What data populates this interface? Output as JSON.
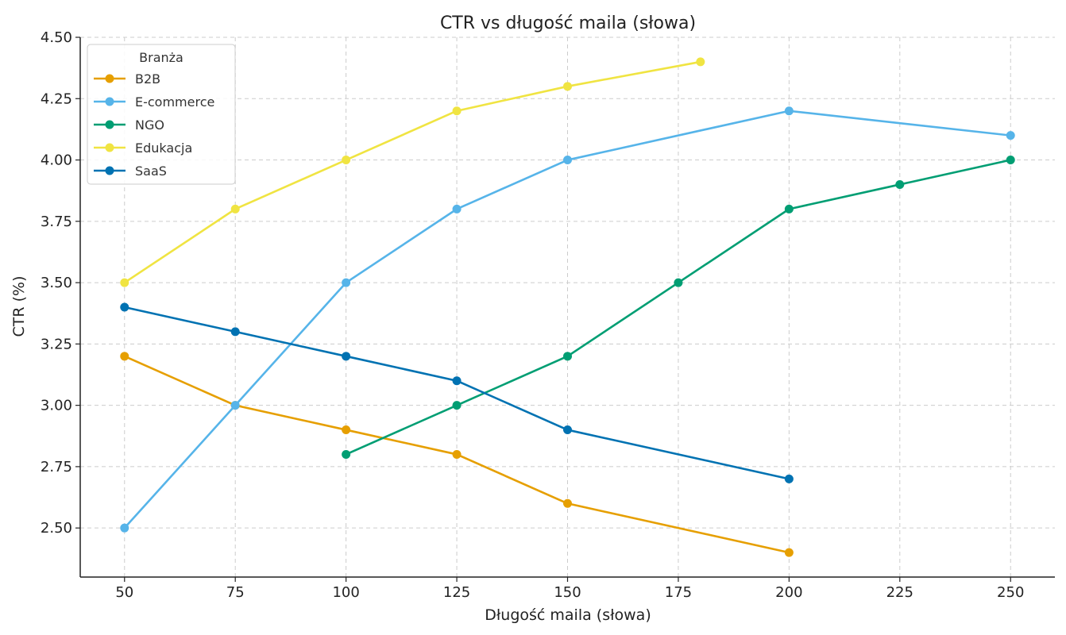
{
  "chart_data": {
    "type": "line",
    "title": "CTR vs długość maila (słowa)",
    "xlabel": "Długość maila (słowa)",
    "ylabel": "CTR (%)",
    "xlim": [
      40,
      260
    ],
    "ylim": [
      2.3,
      4.5
    ],
    "x_ticks": [
      50,
      75,
      100,
      125,
      150,
      175,
      200,
      225,
      250
    ],
    "x_tick_labels": [
      "50",
      "75",
      "100",
      "125",
      "150",
      "175",
      "200",
      "225",
      "250"
    ],
    "y_ticks": [
      2.5,
      2.75,
      3.0,
      3.25,
      3.5,
      3.75,
      4.0,
      4.25,
      4.5
    ],
    "y_tick_labels": [
      "2.50",
      "2.75",
      "3.00",
      "3.25",
      "3.50",
      "3.75",
      "4.00",
      "4.25",
      "4.50"
    ],
    "grid": true,
    "legend": {
      "title": "Branża",
      "placement": "top-left"
    },
    "series": [
      {
        "name": "B2B",
        "color": "#E69F00",
        "x": [
          50,
          75,
          100,
          125,
          150,
          200
        ],
        "y": [
          3.2,
          3.0,
          2.9,
          2.8,
          2.6,
          2.4
        ]
      },
      {
        "name": "E-commerce",
        "color": "#56B4E9",
        "x": [
          50,
          75,
          100,
          125,
          150,
          200,
          250
        ],
        "y": [
          2.5,
          3.0,
          3.5,
          3.8,
          4.0,
          4.2,
          4.1
        ]
      },
      {
        "name": "NGO",
        "color": "#009E73",
        "x": [
          100,
          125,
          150,
          175,
          200,
          225,
          250
        ],
        "y": [
          2.8,
          3.0,
          3.2,
          3.5,
          3.8,
          3.9,
          4.0
        ]
      },
      {
        "name": "Edukacja",
        "color": "#F0E442",
        "x": [
          50,
          75,
          100,
          125,
          150,
          180
        ],
        "y": [
          3.5,
          3.8,
          4.0,
          4.2,
          4.3,
          4.4
        ]
      },
      {
        "name": "SaaS",
        "color": "#0072B2",
        "x": [
          50,
          75,
          100,
          125,
          150,
          200
        ],
        "y": [
          3.4,
          3.3,
          3.2,
          3.1,
          2.9,
          2.7
        ]
      }
    ]
  }
}
